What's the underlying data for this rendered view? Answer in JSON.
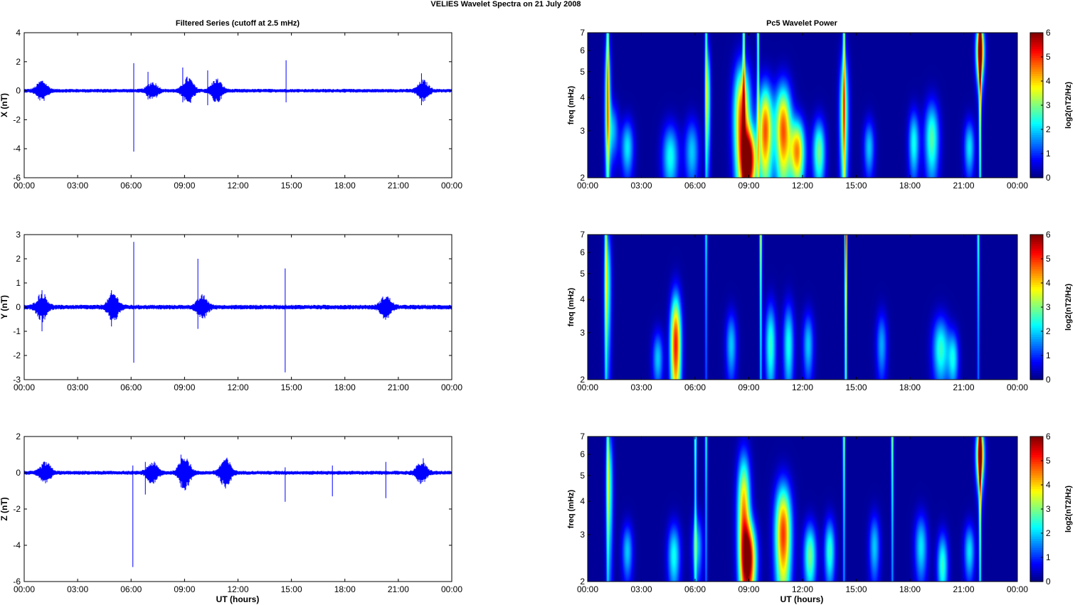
{
  "figure": {
    "suptitle": "VELIES Wavelet Spectra on 21 July      2008",
    "left_title": "Filtered Series (cutoff at 2.5 mHz)",
    "right_title": "Pc5 Wavelet Power",
    "xlabel": "UT (hours)",
    "colorbar_label": "log2(nT2/Hz)",
    "colorbar_ticks": [
      "0",
      "1",
      "2",
      "3",
      "4",
      "5",
      "6"
    ]
  },
  "chart_data": [
    {
      "type": "line",
      "component": "X",
      "ylabel": "X (nT)",
      "ylim": [
        -6,
        4
      ],
      "yticks": [
        -6,
        -4,
        -2,
        0,
        2,
        4
      ],
      "xticks": [
        "00:00",
        "03:00",
        "06:00",
        "09:00",
        "12:00",
        "15:00",
        "18:00",
        "21:00",
        "00:00"
      ],
      "xlim_hours": [
        0,
        24
      ],
      "noise_amp": 0.12,
      "color": "#0000ff",
      "bursts": [
        {
          "t": 1.0,
          "a": 0.6
        },
        {
          "t": 7.2,
          "a": 0.5
        },
        {
          "t": 9.2,
          "a": 0.8
        },
        {
          "t": 10.8,
          "a": 0.7
        },
        {
          "t": 22.4,
          "a": 0.6
        }
      ],
      "spikes": [
        {
          "t": 6.15,
          "max": 1.9,
          "min": -4.2
        },
        {
          "t": 6.95,
          "max": 1.3,
          "min": -0.6
        },
        {
          "t": 8.9,
          "max": 1.6,
          "min": -0.8
        },
        {
          "t": 10.3,
          "max": 1.4,
          "min": -1.0
        },
        {
          "t": 14.7,
          "max": 2.1,
          "min": -0.8
        },
        {
          "t": 22.3,
          "max": 1.2,
          "min": -1.0
        }
      ]
    },
    {
      "type": "line",
      "component": "Y",
      "ylabel": "Y (nT)",
      "ylim": [
        -3,
        3
      ],
      "yticks": [
        -3,
        -2,
        -1,
        0,
        1,
        2,
        3
      ],
      "xticks": [
        "00:00",
        "03:00",
        "06:00",
        "09:00",
        "12:00",
        "15:00",
        "18:00",
        "21:00",
        "00:00"
      ],
      "xlim_hours": [
        0,
        24
      ],
      "noise_amp": 0.09,
      "color": "#0000ff",
      "bursts": [
        {
          "t": 1.0,
          "a": 0.5
        },
        {
          "t": 5.0,
          "a": 0.5
        },
        {
          "t": 10.0,
          "a": 0.4
        },
        {
          "t": 20.3,
          "a": 0.4
        }
      ],
      "spikes": [
        {
          "t": 1.0,
          "max": 0.7,
          "min": -1.0
        },
        {
          "t": 4.9,
          "max": 0.7,
          "min": -0.8
        },
        {
          "t": 6.15,
          "max": 2.7,
          "min": -2.3
        },
        {
          "t": 9.75,
          "max": 2.0,
          "min": -0.9
        },
        {
          "t": 14.65,
          "max": 1.6,
          "min": -2.7
        }
      ]
    },
    {
      "type": "line",
      "component": "Z",
      "ylabel": "Z (nT)",
      "ylim": [
        -6,
        2
      ],
      "yticks": [
        -6,
        -4,
        -2,
        0,
        2
      ],
      "xticks": [
        "00:00",
        "03:00",
        "06:00",
        "09:00",
        "12:00",
        "15:00",
        "18:00",
        "21:00",
        "00:00"
      ],
      "xlim_hours": [
        0,
        24
      ],
      "noise_amp": 0.1,
      "color": "#0000ff",
      "bursts": [
        {
          "t": 1.2,
          "a": 0.5
        },
        {
          "t": 7.2,
          "a": 0.5
        },
        {
          "t": 9.0,
          "a": 0.9
        },
        {
          "t": 11.3,
          "a": 0.7
        },
        {
          "t": 22.3,
          "a": 0.5
        }
      ],
      "spikes": [
        {
          "t": 6.1,
          "max": 0.4,
          "min": -5.2
        },
        {
          "t": 6.8,
          "max": 0.6,
          "min": -1.2
        },
        {
          "t": 8.8,
          "max": 1.0,
          "min": -0.8
        },
        {
          "t": 14.65,
          "max": 0.3,
          "min": -1.6
        },
        {
          "t": 17.3,
          "max": 0.4,
          "min": -1.3
        },
        {
          "t": 20.3,
          "max": 0.6,
          "min": -1.4
        },
        {
          "t": 22.4,
          "max": 0.8,
          "min": -0.4
        }
      ]
    },
    {
      "type": "heatmap",
      "component": "X",
      "ylabel": "freq (mHz)",
      "yscale": "log",
      "ylim_mHz": [
        2,
        7
      ],
      "yticks": [
        2,
        3,
        4,
        5,
        6,
        7
      ],
      "xticks": [
        "00:00",
        "03:00",
        "06:00",
        "09:00",
        "12:00",
        "15:00",
        "18:00",
        "21:00",
        "00:00"
      ],
      "xlim_hours": [
        0,
        24
      ],
      "clim": [
        0,
        6
      ],
      "colormap": "jet",
      "blobs": [
        {
          "t": 1.1,
          "f": 4.0,
          "w": 0.18,
          "h": 0.6,
          "p": 2.8
        },
        {
          "t": 1.4,
          "f": 3.0,
          "w": 0.3,
          "h": 0.25,
          "p": 1.6
        },
        {
          "t": 2.2,
          "f": 2.6,
          "w": 0.35,
          "h": 0.25,
          "p": 2.0
        },
        {
          "t": 4.6,
          "f": 2.4,
          "w": 0.45,
          "h": 0.3,
          "p": 2.2
        },
        {
          "t": 5.8,
          "f": 2.5,
          "w": 0.4,
          "h": 0.3,
          "p": 1.8
        },
        {
          "t": 6.7,
          "f": 4.0,
          "w": 0.15,
          "h": 0.5,
          "p": 2.6
        },
        {
          "t": 8.6,
          "f": 3.3,
          "w": 0.45,
          "h": 0.55,
          "p": 4.8
        },
        {
          "t": 9.0,
          "f": 2.3,
          "w": 0.4,
          "h": 0.3,
          "p": 5.2
        },
        {
          "t": 9.9,
          "f": 3.0,
          "w": 0.4,
          "h": 0.45,
          "p": 4.6
        },
        {
          "t": 10.9,
          "f": 3.0,
          "w": 0.45,
          "h": 0.45,
          "p": 4.6
        },
        {
          "t": 11.7,
          "f": 2.5,
          "w": 0.4,
          "h": 0.3,
          "p": 4.2
        },
        {
          "t": 12.9,
          "f": 2.5,
          "w": 0.35,
          "h": 0.3,
          "p": 2.8
        },
        {
          "t": 14.3,
          "f": 3.5,
          "w": 0.25,
          "h": 0.6,
          "p": 3.2
        },
        {
          "t": 15.7,
          "f": 2.6,
          "w": 0.3,
          "h": 0.25,
          "p": 1.8
        },
        {
          "t": 18.2,
          "f": 2.7,
          "w": 0.3,
          "h": 0.3,
          "p": 2.2
        },
        {
          "t": 19.2,
          "f": 2.8,
          "w": 0.4,
          "h": 0.35,
          "p": 2.6
        },
        {
          "t": 21.3,
          "f": 2.6,
          "w": 0.3,
          "h": 0.25,
          "p": 2.0
        },
        {
          "t": 21.9,
          "f": 6.0,
          "w": 0.22,
          "h": 0.25,
          "p": 5.6
        }
      ],
      "streaks": [
        {
          "t": 1.1,
          "p": 2.6
        },
        {
          "t": 6.6,
          "p": 2.4
        },
        {
          "t": 8.7,
          "p": 3.2
        },
        {
          "t": 9.5,
          "p": 3.0
        },
        {
          "t": 14.3,
          "p": 3.0
        },
        {
          "t": 21.9,
          "p": 4.8
        }
      ]
    },
    {
      "type": "heatmap",
      "component": "Y",
      "ylabel": "freq (mHz)",
      "yscale": "log",
      "ylim_mHz": [
        2,
        7
      ],
      "yticks": [
        2,
        3,
        4,
        5,
        6,
        7
      ],
      "xticks": [
        "00:00",
        "03:00",
        "06:00",
        "09:00",
        "12:00",
        "15:00",
        "18:00",
        "21:00",
        "00:00"
      ],
      "xlim_hours": [
        0,
        24
      ],
      "clim": [
        0,
        6
      ],
      "colormap": "jet",
      "blobs": [
        {
          "t": 1.1,
          "f": 4.5,
          "w": 0.2,
          "h": 0.6,
          "p": 2.4
        },
        {
          "t": 3.9,
          "f": 2.4,
          "w": 0.3,
          "h": 0.25,
          "p": 1.8
        },
        {
          "t": 4.9,
          "f": 2.7,
          "w": 0.3,
          "h": 0.5,
          "p": 5.0
        },
        {
          "t": 8.0,
          "f": 2.7,
          "w": 0.3,
          "h": 0.3,
          "p": 1.8
        },
        {
          "t": 10.2,
          "f": 2.7,
          "w": 0.3,
          "h": 0.4,
          "p": 2.4
        },
        {
          "t": 11.2,
          "f": 2.7,
          "w": 0.3,
          "h": 0.4,
          "p": 2.2
        },
        {
          "t": 12.3,
          "f": 2.7,
          "w": 0.3,
          "h": 0.3,
          "p": 1.8
        },
        {
          "t": 16.4,
          "f": 2.7,
          "w": 0.3,
          "h": 0.3,
          "p": 1.6
        },
        {
          "t": 19.7,
          "f": 2.6,
          "w": 0.45,
          "h": 0.3,
          "p": 2.4
        },
        {
          "t": 20.4,
          "f": 2.4,
          "w": 0.3,
          "h": 0.25,
          "p": 2.0
        }
      ],
      "streaks": [
        {
          "t": 1.0,
          "p": 2.4
        },
        {
          "t": 6.6,
          "p": 2.2
        },
        {
          "t": 9.65,
          "p": 3.4
        },
        {
          "t": 14.4,
          "p": 5.4
        },
        {
          "t": 21.8,
          "p": 2.6
        }
      ]
    },
    {
      "type": "heatmap",
      "component": "Z",
      "ylabel": "freq (mHz)",
      "yscale": "log",
      "ylim_mHz": [
        2,
        7
      ],
      "yticks": [
        2,
        3,
        4,
        5,
        6,
        7
      ],
      "xticks": [
        "00:00",
        "03:00",
        "06:00",
        "09:00",
        "12:00",
        "15:00",
        "18:00",
        "21:00",
        "00:00"
      ],
      "xlim_hours": [
        0,
        24
      ],
      "clim": [
        0,
        6
      ],
      "colormap": "jet",
      "blobs": [
        {
          "t": 1.2,
          "f": 4.5,
          "w": 0.2,
          "h": 0.6,
          "p": 2.4
        },
        {
          "t": 2.2,
          "f": 2.6,
          "w": 0.3,
          "h": 0.25,
          "p": 1.8
        },
        {
          "t": 4.8,
          "f": 2.5,
          "w": 0.35,
          "h": 0.3,
          "p": 2.2
        },
        {
          "t": 6.1,
          "f": 2.7,
          "w": 0.3,
          "h": 0.3,
          "p": 1.8
        },
        {
          "t": 8.7,
          "f": 3.6,
          "w": 0.35,
          "h": 0.6,
          "p": 4.2
        },
        {
          "t": 9.0,
          "f": 2.4,
          "w": 0.4,
          "h": 0.35,
          "p": 5.0
        },
        {
          "t": 10.9,
          "f": 3.0,
          "w": 0.45,
          "h": 0.5,
          "p": 4.8
        },
        {
          "t": 12.4,
          "f": 2.5,
          "w": 0.35,
          "h": 0.3,
          "p": 2.8
        },
        {
          "t": 13.5,
          "f": 2.6,
          "w": 0.3,
          "h": 0.3,
          "p": 2.4
        },
        {
          "t": 16.0,
          "f": 2.7,
          "w": 0.3,
          "h": 0.3,
          "p": 1.8
        },
        {
          "t": 18.6,
          "f": 2.7,
          "w": 0.35,
          "h": 0.3,
          "p": 2.0
        },
        {
          "t": 19.8,
          "f": 2.3,
          "w": 0.3,
          "h": 0.3,
          "p": 2.4
        },
        {
          "t": 21.3,
          "f": 2.6,
          "w": 0.3,
          "h": 0.25,
          "p": 2.0
        },
        {
          "t": 21.9,
          "f": 6.0,
          "w": 0.22,
          "h": 0.25,
          "p": 5.4
        }
      ],
      "streaks": [
        {
          "t": 1.1,
          "p": 2.2
        },
        {
          "t": 6.0,
          "p": 3.0
        },
        {
          "t": 6.6,
          "p": 2.4
        },
        {
          "t": 14.3,
          "p": 3.0
        },
        {
          "t": 17.0,
          "p": 3.0
        },
        {
          "t": 21.9,
          "p": 4.4
        }
      ]
    }
  ]
}
